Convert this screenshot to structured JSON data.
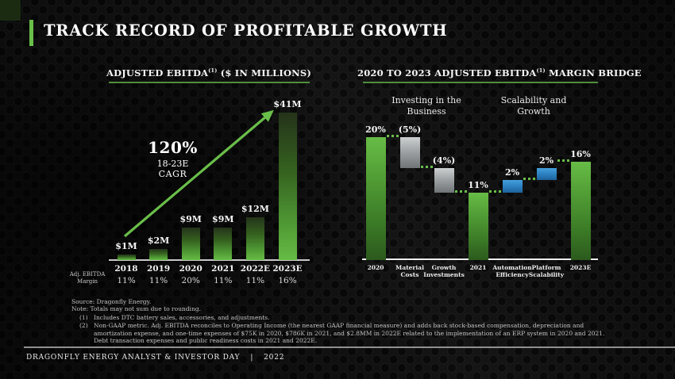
{
  "header": {
    "title": "TRACK RECORD OF PROFITABLE GROWTH"
  },
  "charts": {
    "left": {
      "title_main": "ADJUSTED EBITDA",
      "title_sup": "(1)",
      "title_rest": " ($ IN MILLIONS)",
      "annotation": {
        "pct": "120%",
        "range": "18-23E",
        "metric": "CAGR"
      },
      "row_label_line1": "Adj. EBITDA",
      "row_label_line2": "Margin"
    },
    "right": {
      "title_main": "2020 TO 2023 ADJUSTED EBITDA",
      "title_sup": "(1)",
      "title_rest": " MARGIN BRIDGE",
      "group1_line1": "Investing in the",
      "group1_line2": "Business",
      "group2_line1": "Scalability and",
      "group2_line2": "Growth"
    }
  },
  "chart_data": [
    {
      "type": "bar",
      "title": "ADJUSTED EBITDA(1) ($ IN MILLIONS)",
      "categories": [
        "2018",
        "2019",
        "2020",
        "2021",
        "2022E",
        "2023E"
      ],
      "values": [
        1,
        2,
        9,
        9,
        12,
        41
      ],
      "value_labels": [
        "$1M",
        "$2M",
        "$9M",
        "$9M",
        "$12M",
        "$41M"
      ],
      "secondary_row_label": "Adj. EBITDA Margin",
      "secondary_values": [
        "11%",
        "11%",
        "20%",
        "11%",
        "11%",
        "16%"
      ],
      "annotation": "120% 18-23E CAGR",
      "ylabel": "$ in millions",
      "ylim": [
        0,
        45
      ],
      "grid": false,
      "legend": false
    },
    {
      "type": "waterfall",
      "title": "2020 TO 2023 ADJUSTED EBITDA(1) MARGIN BRIDGE",
      "categories": [
        "2020",
        "Material Costs",
        "Growth Investments",
        "2021",
        "Automation Efficiency",
        "Platform Scalability",
        "2023E"
      ],
      "values": [
        20,
        -5,
        -4,
        11,
        2,
        2,
        16
      ],
      "value_labels": [
        "20%",
        "(5%)",
        "(4%)",
        "11%",
        "2%",
        "2%",
        "16%"
      ],
      "bar_types": [
        "total",
        "decrease",
        "decrease",
        "total",
        "increase",
        "increase",
        "total"
      ],
      "group_annotations": [
        "Investing in the Business",
        "Scalability and Growth"
      ],
      "ylim": [
        0,
        22
      ],
      "grid": false,
      "legend": false
    }
  ],
  "notes": {
    "source": "Source: Dragonfly Energy.",
    "rounding": "Note: Totals may not sum due to rounding.",
    "footnotes": [
      {
        "num": "(1)",
        "text": "Includes DTC battery sales, accessories, and adjustments."
      },
      {
        "num": "(2)",
        "text": "Non-GAAP metric. Adj. EBITDA reconciles to Operating Income (the nearest GAAP financial measure) and adds back stock-based compensation, depreciation and amortization expense, and one-time expenses of $75K in 2020, $786K in 2021, and $2.8MM in 2022E related to the implementation of an ERP system in 2020 and 2021. Debt transaction expenses and public readiness costs in 2021 and 2022E."
      }
    ]
  },
  "footer": {
    "label": "DRAGONFLY ENERGY ANALYST & INVESTOR DAY",
    "separator": "|",
    "year": "2022"
  },
  "colors": {
    "brand_green": "#6abf4a",
    "underline_green": "#4e8f3c",
    "decrease_gray": "#b9bdbf",
    "increase_blue": "#2d80be",
    "background": "#0e0e0e"
  }
}
